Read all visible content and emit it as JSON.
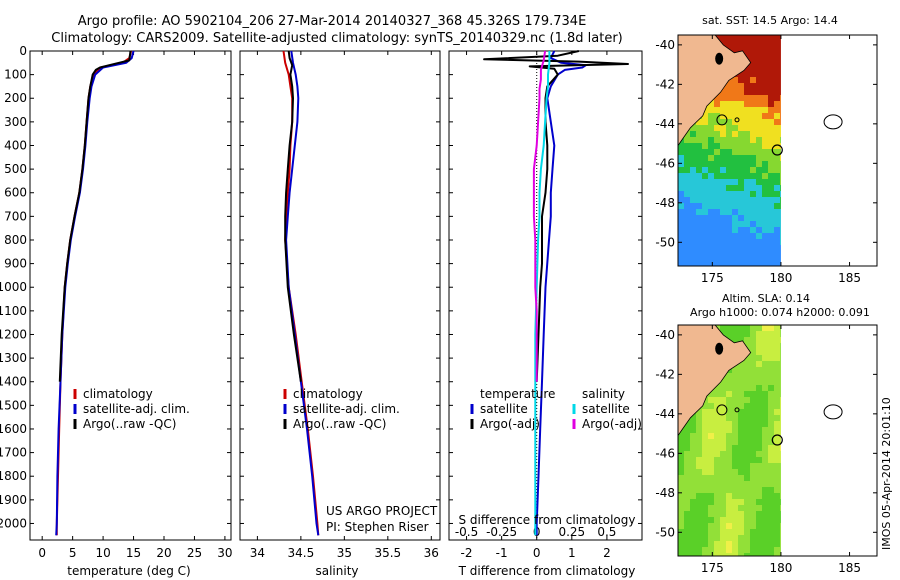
{
  "header": {
    "line1": "Argo profile: AO 5902104_206 27-Mar-2014 20140327_368 45.326S 179.734E",
    "line2": "Climatology: CARS2009. Satellite-adjusted climatology: synTS_20140329.nc (1.8d later)"
  },
  "colors": {
    "climatology": "#cc0000",
    "satellite": "#0000cc",
    "argo": "#000000",
    "salinity_satellite": "#00d8e8",
    "salinity_argo": "#e000e0",
    "land": "#f0b890"
  },
  "depth_ticks": [
    "0",
    "100",
    "200",
    "300",
    "400",
    "500",
    "600",
    "700",
    "800",
    "900",
    "1000",
    "1100",
    "1200",
    "1300",
    "1400",
    "1500",
    "1600",
    "1700",
    "1800",
    "1900",
    "2000"
  ],
  "chart_data": [
    {
      "type": "line",
      "xlabel": "temperature (deg C)",
      "x_ticks": [
        "0",
        "5",
        "10",
        "15",
        "20",
        "25",
        "30"
      ],
      "xlim": [
        -2,
        31
      ],
      "ylim": [
        0,
        2070
      ],
      "legend_placement": "bottom-center",
      "series": [
        {
          "name": "climatology",
          "color_key": "climatology",
          "depth": [
            0,
            30,
            50,
            70,
            100,
            150,
            200,
            300,
            400,
            500,
            600,
            700,
            800,
            900,
            1000,
            1200,
            1400,
            1600,
            1800,
            2000,
            2050
          ],
          "values": [
            14.6,
            14.3,
            13.2,
            9.6,
            8.4,
            7.9,
            7.6,
            7.3,
            7.0,
            6.6,
            6.1,
            5.3,
            4.6,
            4.1,
            3.7,
            3.3,
            3.0,
            2.8,
            2.6,
            2.4,
            2.4
          ]
        },
        {
          "name": "satellite-adj. clim.",
          "color_key": "satellite",
          "depth": [
            0,
            30,
            50,
            70,
            100,
            150,
            200,
            300,
            400,
            500,
            600,
            700,
            800,
            900,
            1000,
            1200,
            1400,
            1600,
            1800,
            2000,
            2050
          ],
          "values": [
            15.0,
            14.7,
            13.8,
            10.0,
            8.7,
            8.1,
            7.8,
            7.4,
            7.1,
            6.7,
            6.2,
            5.4,
            4.7,
            4.2,
            3.8,
            3.3,
            3.0,
            2.7,
            2.5,
            2.4,
            2.3
          ]
        },
        {
          "name": "Argo(..raw -QC)",
          "color_key": "argo",
          "depth": [
            0,
            20,
            40,
            60,
            70,
            80,
            100,
            150,
            200,
            300,
            400,
            500,
            600,
            700,
            800,
            900,
            1000,
            1200,
            1400
          ],
          "values": [
            14.5,
            14.4,
            14.3,
            11.0,
            9.5,
            8.8,
            8.3,
            7.9,
            7.6,
            7.3,
            7.0,
            6.6,
            6.1,
            5.3,
            4.6,
            4.1,
            3.7,
            3.2,
            2.9
          ]
        }
      ]
    },
    {
      "type": "line",
      "xlabel": "salinity",
      "x_ticks": [
        "34",
        "34.5",
        "35",
        "35.5",
        "36"
      ],
      "xlim": [
        33.8,
        36.1
      ],
      "ylim": [
        0,
        2070
      ],
      "legend_placement": "bottom-center",
      "annotation": [
        "US ARGO PROJECT",
        "PI: Stephen Riser"
      ],
      "series": [
        {
          "name": "climatology",
          "color_key": "climatology",
          "depth": [
            0,
            50,
            100,
            150,
            200,
            300,
            400,
            500,
            600,
            700,
            800,
            1000,
            1200,
            1400,
            1600,
            1800,
            2000,
            2050
          ],
          "values": [
            34.3,
            34.32,
            34.36,
            34.38,
            34.4,
            34.4,
            34.38,
            34.37,
            34.35,
            34.33,
            34.32,
            34.36,
            34.44,
            34.51,
            34.58,
            34.64,
            34.69,
            34.7
          ]
        },
        {
          "name": "satellite-adj. clim.",
          "color_key": "satellite",
          "depth": [
            0,
            50,
            100,
            150,
            200,
            300,
            400,
            500,
            600,
            700,
            800,
            1000,
            1200,
            1400,
            1600,
            1800,
            2000,
            2050
          ],
          "values": [
            34.39,
            34.41,
            34.44,
            34.46,
            34.47,
            34.46,
            34.43,
            34.4,
            34.37,
            34.35,
            34.33,
            34.36,
            34.43,
            34.5,
            34.57,
            34.63,
            34.68,
            34.7
          ]
        },
        {
          "name": "Argo(..raw -QC)",
          "color_key": "argo",
          "depth": [
            0,
            30,
            60,
            100,
            150,
            200,
            300,
            400,
            500,
            600,
            700,
            800,
            1000,
            1200,
            1400
          ],
          "values": [
            34.36,
            34.37,
            34.4,
            34.38,
            34.4,
            34.41,
            34.4,
            34.37,
            34.35,
            34.33,
            34.32,
            34.32,
            34.35,
            34.42,
            34.5
          ]
        }
      ]
    },
    {
      "type": "line",
      "xlabel": "T difference from climatology",
      "x_ticks": [
        "-2",
        "-1",
        "0",
        "1",
        "2"
      ],
      "xlim": [
        -2.5,
        3.0
      ],
      "secondary_xlabel": "S difference from climatology",
      "secondary_x_ticks": [
        "-0.5",
        "-0.25",
        "0",
        "0.25",
        "0.5"
      ],
      "secondary_xlim": [
        -0.625,
        0.75
      ],
      "ylim": [
        0,
        2070
      ],
      "legend_placement": "bottom",
      "legend_titles": [
        "temperature",
        "salinity"
      ],
      "series": [
        {
          "name": "satellite",
          "group": "temperature",
          "color_key": "satellite",
          "depth": [
            0,
            30,
            50,
            60,
            70,
            80,
            100,
            150,
            200,
            300,
            400,
            500,
            600,
            700,
            800,
            1000,
            1200,
            1400,
            1600,
            1800,
            2000,
            2050
          ],
          "values": [
            0.5,
            0.4,
            0.7,
            1.4,
            1.3,
            0.8,
            0.6,
            0.4,
            0.3,
            0.4,
            0.5,
            0.45,
            0.4,
            0.4,
            0.35,
            0.25,
            0.2,
            0.15,
            0.1,
            0.05,
            0.0,
            0.0
          ]
        },
        {
          "name": "Argo(-adj)",
          "group": "temperature",
          "color_key": "argo",
          "depth": [
            0,
            20,
            35,
            45,
            55,
            65,
            75,
            100,
            150,
            200,
            300,
            400,
            500,
            600,
            700,
            800,
            900,
            1000,
            1200,
            1400
          ],
          "values": [
            1.2,
            0.6,
            -1.5,
            1.2,
            2.6,
            -0.2,
            0.5,
            0.6,
            0.3,
            0.25,
            0.25,
            0.3,
            0.3,
            0.25,
            0.15,
            0.15,
            0.15,
            0.1,
            0.05,
            0.0
          ]
        },
        {
          "name": "satellite",
          "group": "salinity",
          "color_key": "salinity_satellite",
          "depth": [
            0,
            50,
            100,
            150,
            200,
            300,
            400,
            500,
            600,
            700,
            800,
            1000,
            1200,
            1400,
            1600,
            1800,
            2000,
            2050
          ],
          "values": [
            0.09,
            0.09,
            0.08,
            0.08,
            0.07,
            0.06,
            0.05,
            0.03,
            0.02,
            0.02,
            0.01,
            0.0,
            -0.01,
            -0.01,
            -0.01,
            -0.01,
            -0.01,
            -0.01
          ]
        },
        {
          "name": "Argo(-adj)",
          "group": "salinity",
          "color_key": "salinity_argo",
          "depth": [
            0,
            40,
            80,
            120,
            160,
            200,
            300,
            400,
            500,
            600,
            700,
            800,
            900,
            1000,
            1100,
            1200,
            1300,
            1400
          ],
          "values": [
            0.06,
            0.05,
            0.03,
            0.03,
            0.02,
            0.02,
            0.01,
            0.0,
            -0.02,
            -0.02,
            -0.02,
            -0.01,
            -0.01,
            -0.01,
            0.0,
            0.0,
            0.0,
            0.0
          ]
        }
      ]
    },
    {
      "type": "heatmap",
      "title": "sat. SST: 14.5  Argo: 14.4",
      "x_ticks": [
        "175",
        "180",
        "185"
      ],
      "y_ticks": [
        "-40",
        "-42",
        "-44",
        "-46",
        "-48",
        "-50"
      ],
      "xlim": [
        172.5,
        187
      ],
      "ylim": [
        -51.2,
        -39.5
      ],
      "data_extent_lon": [
        172.5,
        180
      ],
      "float_position": {
        "lat": -45.326,
        "lon": 179.734
      }
    },
    {
      "type": "heatmap",
      "title": "Altim. SLA: 0.14",
      "subtitle": "Argo h1000: 0.074  h2000: 0.091",
      "x_ticks": [
        "175",
        "180",
        "185"
      ],
      "y_ticks": [
        "-40",
        "-42",
        "-44",
        "-46",
        "-48",
        "-50"
      ],
      "xlim": [
        172.5,
        187
      ],
      "ylim": [
        -51.2,
        -39.5
      ],
      "data_extent_lon": [
        172.5,
        180
      ],
      "float_position": {
        "lat": -45.326,
        "lon": 179.734
      },
      "side_text": "IMOS 05-Apr-2014 20:01:10"
    }
  ]
}
